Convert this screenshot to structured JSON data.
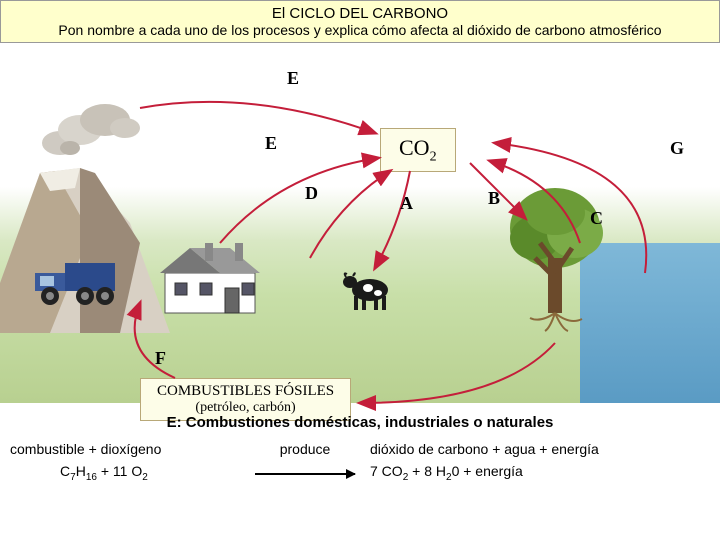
{
  "header": {
    "title": "El CICLO DEL CARBONO",
    "subtitle": "Pon nombre a cada uno de los procesos y explica cómo afecta al dióxido de carbono atmosférico"
  },
  "co2_label_html": "CO<sub>2</sub>",
  "fossil": {
    "title": "COMBUSTIBLES FÓSILES",
    "sub": "(petróleo, carbón)"
  },
  "labels": {
    "A": "A",
    "B": "B",
    "C": "C",
    "D": "D",
    "E1": "E",
    "E2": "E",
    "F": "F",
    "G": "G"
  },
  "equation": {
    "title": "E: Combustiones domésticas, industriales o naturales",
    "row1": {
      "left": "combustible  +   dioxígeno",
      "mid": "produce",
      "right": "dióxido de carbono  +  agua  +  energía"
    },
    "row2": {
      "left_html": "C<sub>7</sub>H<sub>16</sub>   +   11 O<sub>2</sub>",
      "right_html": "7 CO<sub>2</sub>   +    8 H<sub>2</sub>0  +  energía"
    }
  },
  "colors": {
    "arrow": "#c41e3a",
    "mountain_light": "#e8e4dc",
    "mountain_dark": "#9b8a78",
    "tree_crown": "#6b9b37",
    "tree_trunk": "#8b5a2b",
    "truck_blue": "#2b4a8b",
    "house_wall": "#ffffff",
    "house_roof": "#666",
    "cow": "#222"
  }
}
